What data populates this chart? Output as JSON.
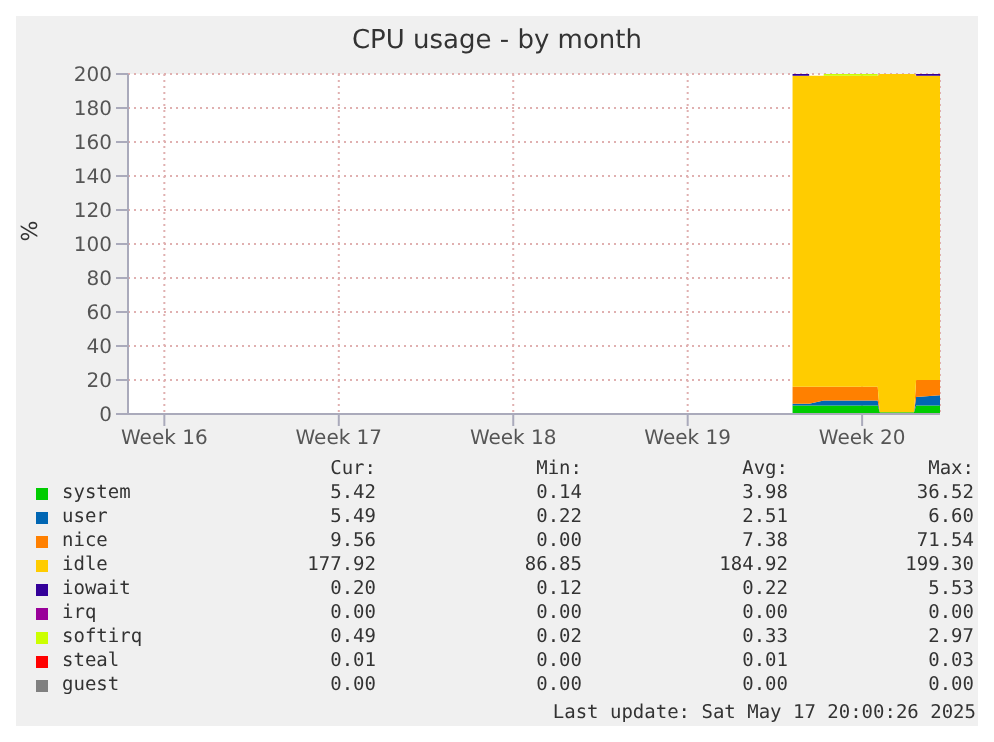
{
  "chart_data": {
    "type": "area",
    "stacked": true,
    "title": "CPU usage - by month",
    "ylabel": "%",
    "x": [
      "2025-05-12T17:00",
      "2025-05-13T09:00",
      "2025-05-13T23:00",
      "2025-05-14T19:00",
      "2025-05-15T12:00",
      "2025-05-16T03:00",
      "2025-05-16T05:00",
      "2025-05-17T14:00",
      "2025-05-17T16:00",
      "2025-05-18T15:00"
    ],
    "xlim": [
      "2025-04-16T01:00",
      "2025-05-18T15:00"
    ],
    "xticks": [
      {
        "value": "2025-04-17T12:00",
        "label": "Week 16"
      },
      {
        "value": "2025-04-24T12:00",
        "label": "Week 17"
      },
      {
        "value": "2025-05-01T12:00",
        "label": "Week 18"
      },
      {
        "value": "2025-05-08T12:00",
        "label": "Week 19"
      },
      {
        "value": "2025-05-15T12:00",
        "label": "Week 20"
      }
    ],
    "ylim": [
      0,
      200
    ],
    "yticks": [
      0,
      20,
      40,
      60,
      80,
      100,
      120,
      140,
      160,
      180,
      200
    ],
    "grid": true,
    "legend": "bottom",
    "series": [
      {
        "name": "system",
        "color": "#00cc00",
        "values": [
          5,
          5,
          5,
          5,
          5,
          5,
          1,
          1,
          5,
          5
        ]
      },
      {
        "name": "user",
        "color": "#0066b3",
        "values": [
          1,
          1,
          3,
          3,
          3,
          3,
          0,
          0,
          5,
          6
        ]
      },
      {
        "name": "nice",
        "color": "#ff8000",
        "values": [
          10,
          10,
          8,
          8,
          8,
          8,
          0,
          0,
          10,
          9
        ]
      },
      {
        "name": "idle",
        "color": "#ffcc00",
        "values": [
          183,
          183,
          183,
          183,
          183,
          183,
          199,
          199,
          179,
          179
        ]
      },
      {
        "name": "iowait",
        "color": "#330099",
        "values": [
          1,
          1,
          null,
          null,
          null,
          null,
          null,
          null,
          1,
          1
        ]
      },
      {
        "name": "irq",
        "color": "#990099",
        "values": [
          null,
          null,
          null,
          null,
          null,
          null,
          null,
          null,
          null,
          null
        ]
      },
      {
        "name": "softirq",
        "color": "#ccff00",
        "values": [
          null,
          null,
          1,
          1,
          1,
          1,
          null,
          null,
          null,
          null
        ]
      },
      {
        "name": "steal",
        "color": "#ff0000",
        "values": [
          null,
          null,
          null,
          null,
          null,
          null,
          null,
          null,
          null,
          null
        ]
      },
      {
        "name": "guest",
        "color": "#808080",
        "values": [
          null,
          null,
          null,
          null,
          null,
          null,
          null,
          null,
          null,
          null
        ]
      }
    ],
    "annotations": [
      "Cur:",
      "Min:",
      "Avg:",
      "Max:",
      "5.42",
      "0.14",
      "3.98",
      "36.52",
      "5.49",
      "0.22",
      "2.51",
      "6.60",
      "9.56",
      "0.00",
      "7.38",
      "71.54",
      "177.92",
      "86.85",
      "184.92",
      "199.30",
      "0.20",
      "0.12",
      "0.22",
      "5.53",
      "0.00",
      "0.00",
      "0.00",
      "0.00",
      "0.49",
      "0.02",
      "0.33",
      "2.97",
      "0.01",
      "0.00",
      "0.01",
      "0.03",
      "0.00",
      "0.00",
      "0.00",
      "0.00",
      "Last update: Sat May 17 20:00:26 2025"
    ]
  }
}
